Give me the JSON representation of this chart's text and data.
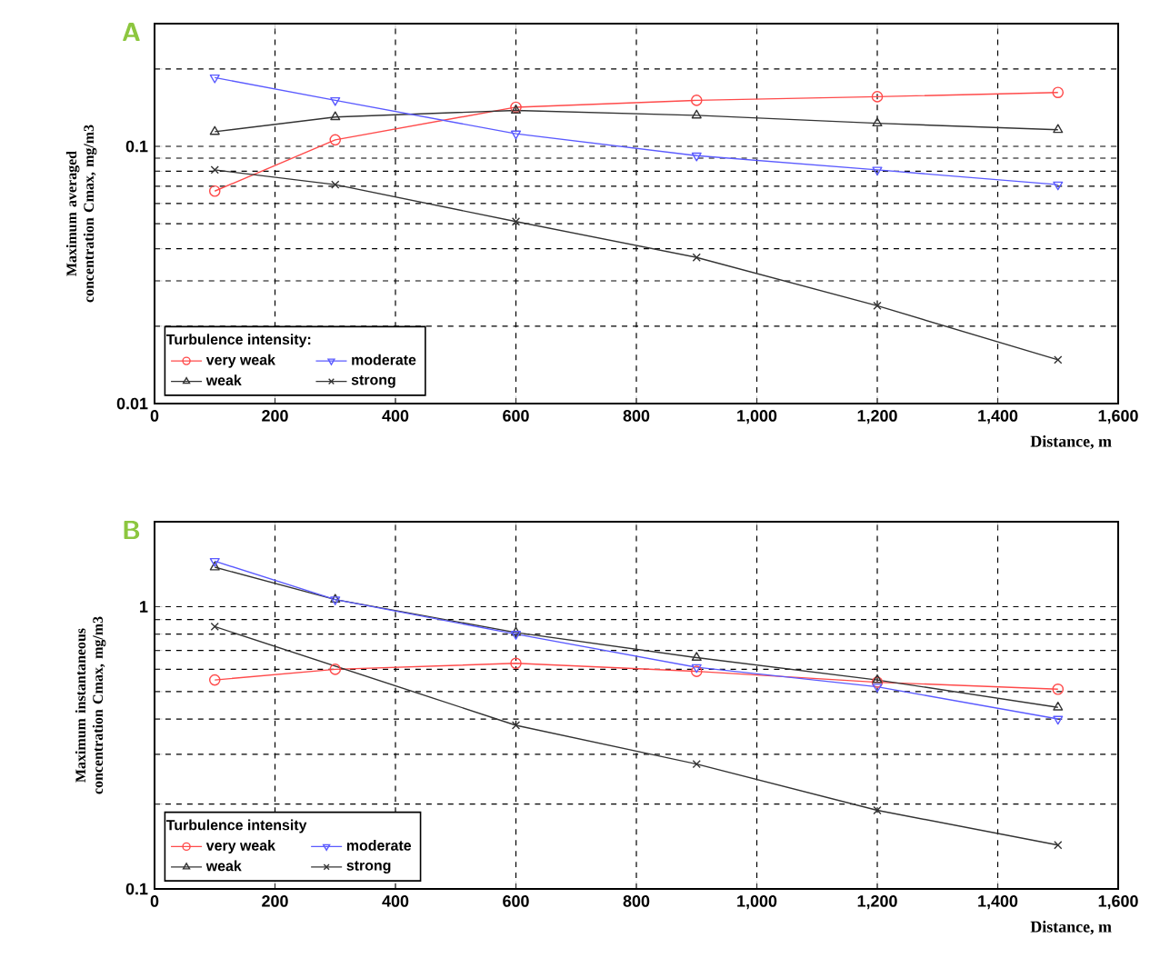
{
  "chart_data": [
    {
      "type": "line",
      "title": "A",
      "xlabel": "Distance, m",
      "ylabel": "Maximum averaged concentration Cmax, mg/m3",
      "legend_title": "Turbulence intensity:",
      "x": [
        100,
        300,
        600,
        900,
        1200,
        1500
      ],
      "series": [
        {
          "name": "very weak",
          "color": "#ff4a4a",
          "marker": "circle",
          "values": [
            0.067,
            0.106,
            0.142,
            0.151,
            0.156,
            0.162
          ]
        },
        {
          "name": "weak",
          "color": "#333333",
          "marker": "triangle",
          "values": [
            0.114,
            0.13,
            0.138,
            0.132,
            0.123,
            0.116
          ]
        },
        {
          "name": "moderate",
          "color": "#5a5aff",
          "marker": "triangle down",
          "values": [
            0.185,
            0.151,
            0.112,
            0.092,
            0.081,
            0.071
          ]
        },
        {
          "name": "strong",
          "color": "#333333",
          "marker": "cross",
          "values": [
            0.081,
            0.071,
            0.051,
            0.037,
            0.024,
            0.0148
          ]
        }
      ],
      "xlim": [
        0,
        1600
      ],
      "ylim": [
        0.01,
        0.3
      ],
      "log": "y",
      "grid": true,
      "legend": "bottom left",
      "xticks": [
        0,
        200,
        400,
        600,
        800,
        {
          "value": 1000,
          "label": "1,000"
        },
        {
          "value": 1200,
          "label": "1,200"
        },
        {
          "value": 1400,
          "label": "1,400"
        },
        {
          "value": 1600,
          "label": "1,600"
        }
      ],
      "yticks": [
        0.01,
        {
          "value": 0.02,
          "label": null
        },
        {
          "value": 0.03,
          "label": null
        },
        {
          "value": 0.04,
          "label": null
        },
        {
          "value": 0.05,
          "label": null
        },
        {
          "value": 0.06,
          "label": null
        },
        {
          "value": 0.07,
          "label": null
        },
        {
          "value": 0.08,
          "label": null
        },
        {
          "value": 0.09,
          "label": null
        },
        0.1,
        {
          "value": 0.2,
          "label": null
        }
      ]
    },
    {
      "type": "line",
      "title": "B",
      "xlabel": "Distance, m",
      "ylabel": "Maximum instantaneous concentration Cmax, mg/m3",
      "legend_title": "Turbulence intensity",
      "x": [
        100,
        300,
        600,
        900,
        1200,
        1500
      ],
      "series": [
        {
          "name": "very weak",
          "color": "#ff4a4a",
          "marker": "circle",
          "values": [
            0.55,
            0.6,
            0.63,
            0.59,
            0.54,
            0.51
          ]
        },
        {
          "name": "weak",
          "color": "#333333",
          "marker": "triangle",
          "values": [
            1.38,
            1.06,
            0.81,
            0.66,
            0.55,
            0.44
          ]
        },
        {
          "name": "moderate",
          "color": "#5a5aff",
          "marker": "triangle down",
          "values": [
            1.45,
            1.06,
            0.8,
            0.61,
            0.52,
            0.4
          ]
        },
        {
          "name": "strong",
          "color": "#333333",
          "marker": "cross",
          "x": [
            100,
            600,
            900,
            1200,
            1500
          ],
          "values": [
            0.85,
            0.38,
            0.277,
            0.19,
            0.143
          ]
        }
      ],
      "xlim": [
        0,
        1600
      ],
      "ylim": [
        0.1,
        2
      ],
      "log": "y",
      "grid": true,
      "legend": "bottom left",
      "xticks": [
        0,
        200,
        400,
        600,
        800,
        {
          "value": 1000,
          "label": "1,000"
        },
        {
          "value": 1200,
          "label": "1,200"
        },
        {
          "value": 1400,
          "label": "1,400"
        },
        {
          "value": 1600,
          "label": "1,600"
        }
      ],
      "yticks": [
        0.1,
        {
          "value": 0.2,
          "label": null
        },
        {
          "value": 0.3,
          "label": null
        },
        {
          "value": 0.4,
          "label": null
        },
        {
          "value": 0.5,
          "label": null
        },
        {
          "value": 0.6,
          "label": null
        },
        {
          "value": 0.7,
          "label": null
        },
        {
          "value": 0.8,
          "label": null
        },
        {
          "value": 0.9,
          "label": null
        },
        1
      ]
    }
  ]
}
